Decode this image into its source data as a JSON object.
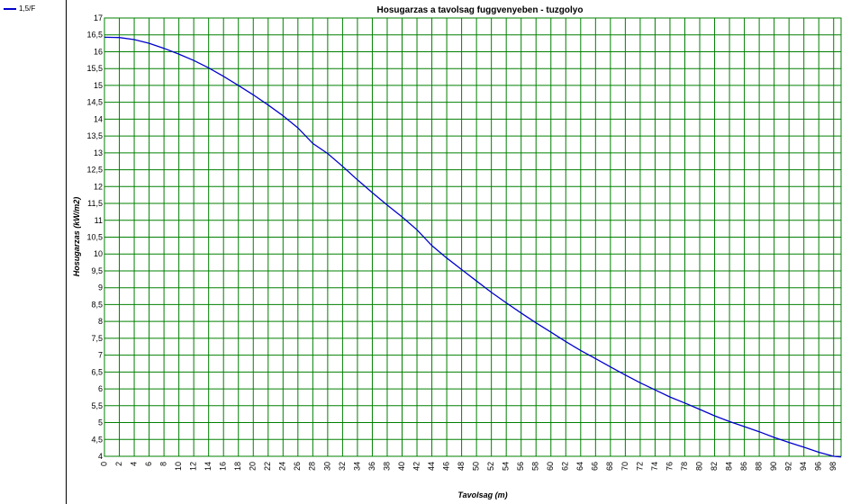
{
  "legend": {
    "items": [
      {
        "label": "1,5/F",
        "color": "#0000cc"
      }
    ]
  },
  "chart_data": {
    "type": "line",
    "title": "Hosugarzas a tavolsag fuggvenyeben - tuzgolyo",
    "xlabel": "Tavolsag (m)",
    "ylabel": "Hosugarzas (kW/m2)",
    "xlim": [
      0,
      99
    ],
    "ylim": [
      4,
      17
    ],
    "grid": true,
    "grid_color": "#008000",
    "legend_position": "left-panel",
    "x_ticks": [
      0,
      2,
      4,
      6,
      8,
      10,
      12,
      14,
      16,
      18,
      20,
      22,
      24,
      26,
      28,
      30,
      32,
      34,
      36,
      38,
      40,
      42,
      44,
      46,
      48,
      50,
      52,
      54,
      56,
      58,
      60,
      62,
      64,
      66,
      68,
      70,
      72,
      74,
      76,
      78,
      80,
      82,
      84,
      86,
      88,
      90,
      92,
      94,
      96,
      98
    ],
    "y_ticks": [
      "4",
      "4,5",
      "5",
      "5,5",
      "6",
      "6,5",
      "7",
      "7,5",
      "8",
      "8,5",
      "9",
      "9,5",
      "10",
      "10,5",
      "11",
      "11,5",
      "12",
      "12,5",
      "13",
      "13,5",
      "14",
      "14,5",
      "15",
      "15,5",
      "16",
      "16,5",
      "17"
    ],
    "series": [
      {
        "name": "1,5/F",
        "color": "#0000cc",
        "x": [
          0,
          2,
          4,
          6,
          8,
          10,
          12,
          14,
          16,
          18,
          20,
          22,
          24,
          26,
          28,
          30,
          32,
          34,
          36,
          38,
          40,
          42,
          44,
          46,
          48,
          50,
          52,
          54,
          56,
          58,
          60,
          62,
          64,
          66,
          68,
          70,
          72,
          74,
          76,
          78,
          80,
          82,
          84,
          86,
          88,
          90,
          92,
          94,
          96,
          98,
          99
        ],
        "y": [
          16.43,
          16.42,
          16.36,
          16.25,
          16.1,
          15.93,
          15.74,
          15.52,
          15.27,
          15.0,
          14.72,
          14.42,
          14.1,
          13.74,
          13.28,
          12.98,
          12.6,
          12.2,
          11.82,
          11.45,
          11.1,
          10.72,
          10.25,
          9.88,
          9.54,
          9.2,
          8.86,
          8.55,
          8.25,
          7.96,
          7.68,
          7.4,
          7.14,
          6.9,
          6.65,
          6.41,
          6.18,
          5.97,
          5.76,
          5.58,
          5.39,
          5.2,
          5.03,
          4.88,
          4.73,
          4.56,
          4.41,
          4.27,
          4.12,
          4.0,
          3.98
        ]
      }
    ]
  }
}
